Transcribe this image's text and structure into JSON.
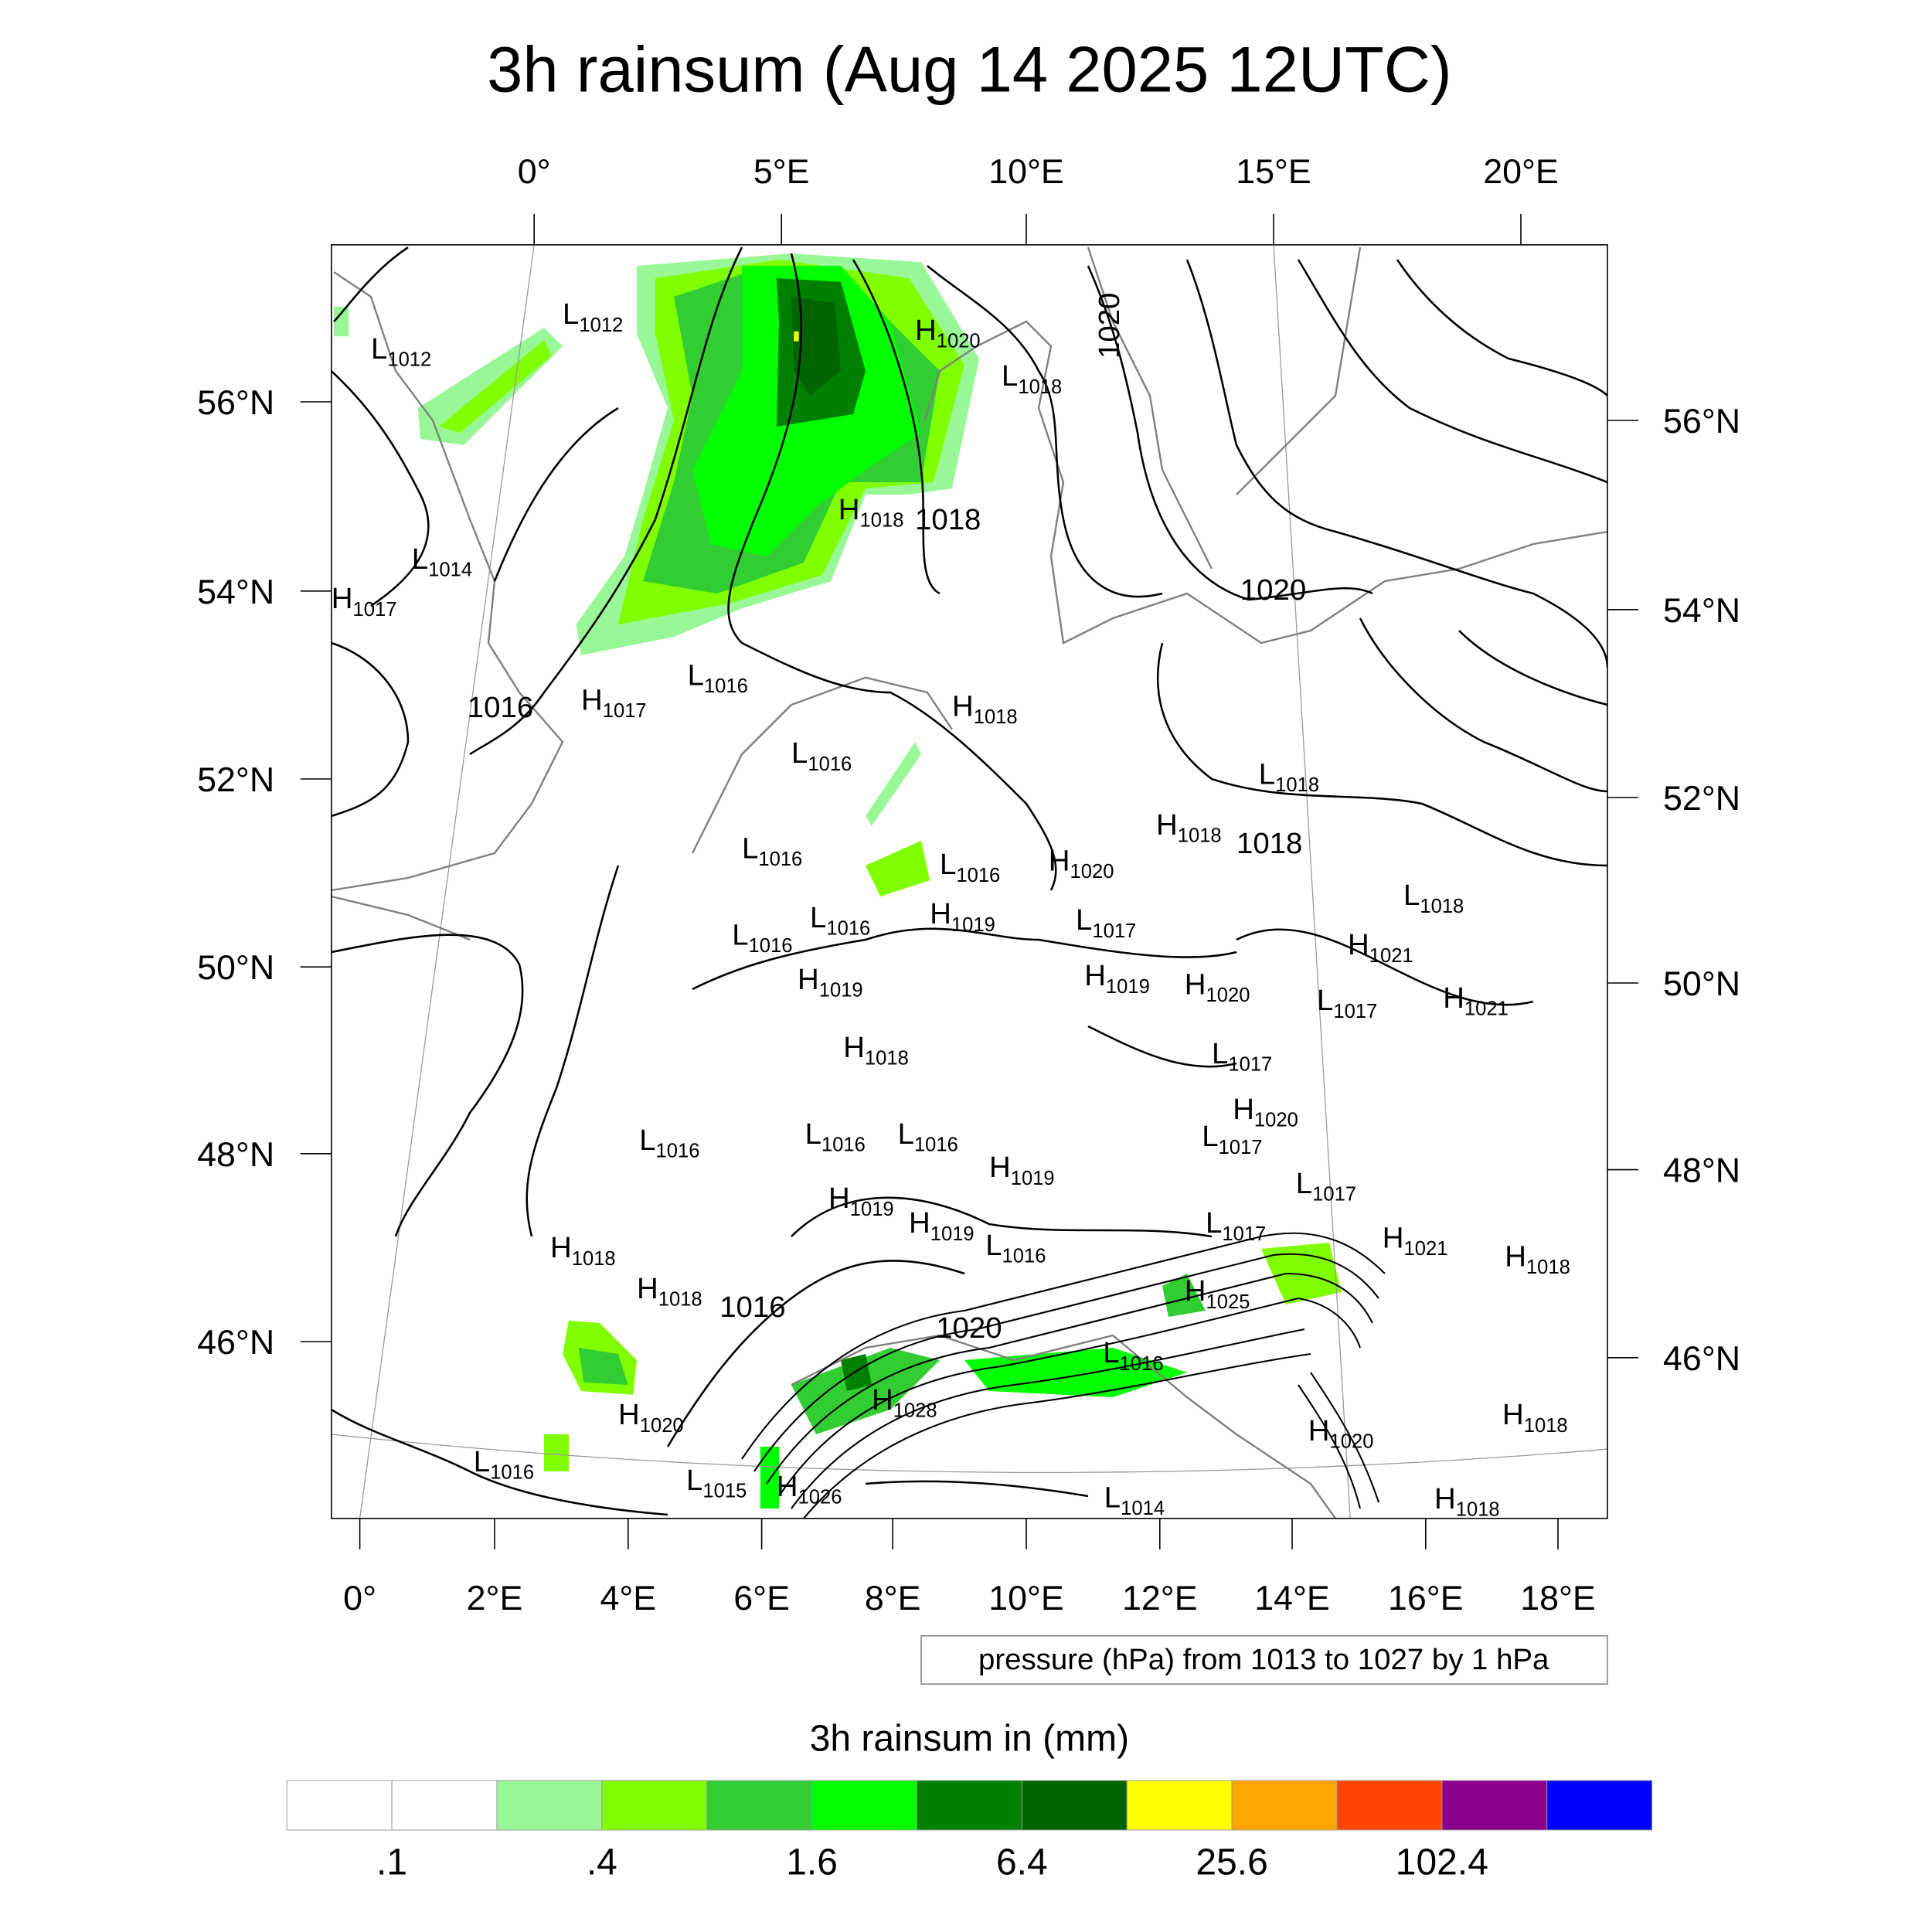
{
  "title": "3h rainsum (Aug 14 2025 12UTC)",
  "top_lon_labels": [
    "0°",
    "5°E",
    "10°E",
    "15°E",
    "20°E"
  ],
  "left_lat_labels": [
    "56°N",
    "54°N",
    "52°N",
    "50°N",
    "48°N",
    "46°N"
  ],
  "right_lat_labels": [
    "56°N",
    "54°N",
    "52°N",
    "50°N",
    "48°N",
    "46°N"
  ],
  "bottom_lon_labels": [
    "0°",
    "2°E",
    "4°E",
    "6°E",
    "8°E",
    "10°E",
    "12°E",
    "14°E",
    "16°E",
    "18°E"
  ],
  "contour_info": "pressure (hPa) from 1013 to 1027 by 1 hPa",
  "colorbar": {
    "title": "3h rainsum in (mm)",
    "colors": [
      "#ffffff",
      "#ffffff",
      "#98f898",
      "#80ff00",
      "#32cd32",
      "#00ff00",
      "#008000",
      "#006400",
      "#ffff00",
      "#ffa500",
      "#ff4500",
      "#8b008b",
      "#0000ff"
    ],
    "labels": [
      ".1",
      ".4",
      "1.6",
      "6.4",
      "25.6",
      "102.4"
    ]
  },
  "pressure_labels": [
    {
      "t": "L",
      "v": "1012"
    },
    {
      "t": "L",
      "v": "1012"
    },
    {
      "t": "H",
      "v": "1020"
    },
    {
      "t": "L",
      "v": "1018"
    },
    {
      "t": "H",
      "v": "1018"
    },
    {
      "t": "",
      "v": "1018"
    },
    {
      "t": "L",
      "v": "1014"
    },
    {
      "t": "H",
      "v": "1017"
    },
    {
      "t": "",
      "v": "1020"
    },
    {
      "t": "L",
      "v": "1016"
    },
    {
      "t": "H",
      "v": "1017"
    },
    {
      "t": "",
      "v": "1016"
    },
    {
      "t": "H",
      "v": "1018"
    },
    {
      "t": "L",
      "v": "1016"
    },
    {
      "t": "L",
      "v": "1018"
    },
    {
      "t": "H",
      "v": "1018"
    },
    {
      "t": "",
      "v": "1018"
    },
    {
      "t": "L",
      "v": "1016"
    },
    {
      "t": "L",
      "v": "1016"
    },
    {
      "t": "H",
      "v": "1020"
    },
    {
      "t": "L",
      "v": "1018"
    },
    {
      "t": "L",
      "v": "1016"
    },
    {
      "t": "H",
      "v": "1019"
    },
    {
      "t": "L",
      "v": "1017"
    },
    {
      "t": "L",
      "v": "1016"
    },
    {
      "t": "H",
      "v": "1021"
    },
    {
      "t": "H",
      "v": "1019"
    },
    {
      "t": "H",
      "v": "1019"
    },
    {
      "t": "H",
      "v": "1020"
    },
    {
      "t": "L",
      "v": "1017"
    },
    {
      "t": "H",
      "v": "1021"
    },
    {
      "t": "H",
      "v": "1018"
    },
    {
      "t": "L",
      "v": "1017"
    },
    {
      "t": "H",
      "v": "1020"
    },
    {
      "t": "L",
      "v": "1017"
    },
    {
      "t": "L",
      "v": "1016"
    },
    {
      "t": "L",
      "v": "1016"
    },
    {
      "t": "L",
      "v": "1016"
    },
    {
      "t": "H",
      "v": "1019"
    },
    {
      "t": "L",
      "v": "1017"
    },
    {
      "t": "H",
      "v": "1019"
    },
    {
      "t": "H",
      "v": "1019"
    },
    {
      "t": "L",
      "v": "1017"
    },
    {
      "t": "H",
      "v": "1021"
    },
    {
      "t": "H",
      "v": "1018"
    },
    {
      "t": "H",
      "v": "1018"
    },
    {
      "t": "L",
      "v": "1016"
    },
    {
      "t": "H",
      "v": "1018"
    },
    {
      "t": "H",
      "v": "1025"
    },
    {
      "t": "",
      "v": "1020"
    },
    {
      "t": "L",
      "v": "1016"
    },
    {
      "t": "H",
      "v": "1028"
    },
    {
      "t": "H",
      "v": "1018"
    },
    {
      "t": "H",
      "v": "1020"
    },
    {
      "t": "H",
      "v": "1020"
    },
    {
      "t": "L",
      "v": "1016"
    },
    {
      "t": "L",
      "v": "1015"
    },
    {
      "t": "H",
      "v": "1026"
    },
    {
      "t": "H",
      "v": "1018"
    },
    {
      "t": "L",
      "v": "1014"
    },
    {
      "t": "",
      "v": "1016"
    },
    {
      "t": "",
      "v": "1020"
    }
  ]
}
